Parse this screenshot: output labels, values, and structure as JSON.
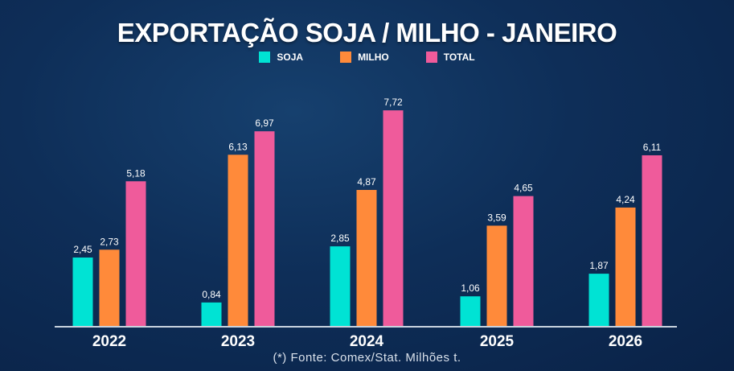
{
  "title": "EXPORTAÇÃO SOJA / MILHO - JANEIRO",
  "source": "(*) Fonte: Comex/Stat. Milhões t.",
  "chart_data": {
    "type": "bar",
    "title": "EXPORTAÇÃO SOJA / MILHO - JANEIRO",
    "categories": [
      "2022",
      "2023",
      "2024",
      "2025",
      "2026"
    ],
    "series": [
      {
        "name": "SOJA",
        "color": "#00e3d4",
        "values": [
          2.45,
          0.84,
          2.85,
          1.06,
          1.87
        ],
        "labels": [
          "2,45",
          "0,84",
          "2,85",
          "1,06",
          "1,87"
        ]
      },
      {
        "name": "MILHO",
        "color": "#ff8a3a",
        "values": [
          2.73,
          6.13,
          4.87,
          3.59,
          4.24
        ],
        "labels": [
          "2,73",
          "6,13",
          "4,87",
          "3,59",
          "4,24"
        ]
      },
      {
        "name": "TOTAL",
        "color": "#ef5b9b",
        "values": [
          5.18,
          6.97,
          7.72,
          4.65,
          6.11
        ],
        "labels": [
          "5,18",
          "6,97",
          "7,72",
          "4,65",
          "6,11"
        ]
      }
    ],
    "legend": "top-center",
    "grid": false,
    "ylim": [
      0,
      8
    ]
  }
}
